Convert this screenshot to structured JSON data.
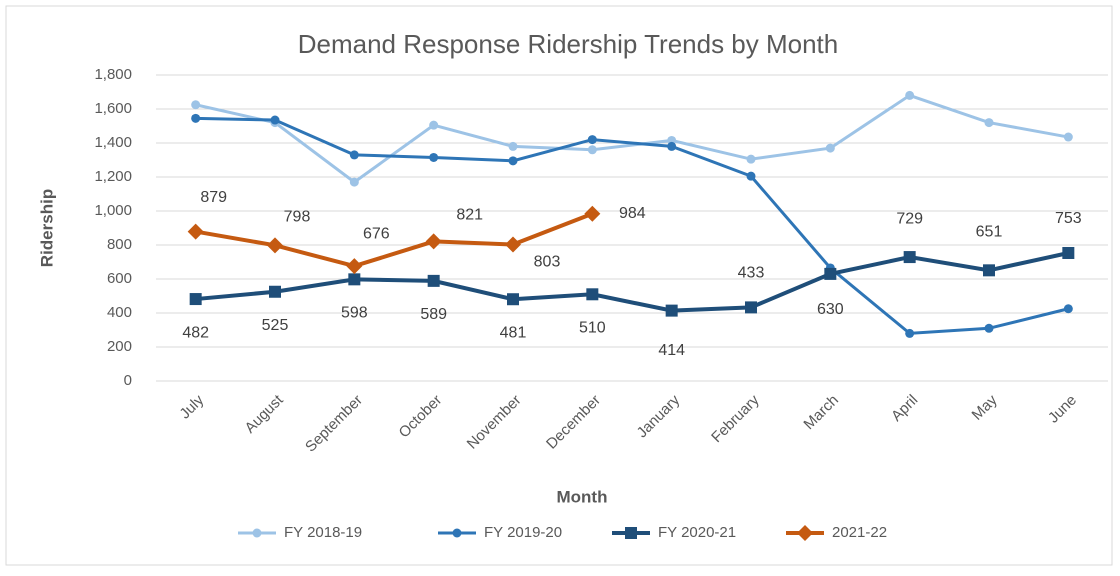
{
  "chart_data": {
    "type": "line",
    "title": "Demand Response Ridership Trends by Month",
    "x_label": "Month",
    "y_label": "Ridership",
    "categories": [
      "July",
      "August",
      "September",
      "October",
      "November",
      "December",
      "January",
      "February",
      "March",
      "April",
      "May",
      "June"
    ],
    "series": [
      {
        "name": "FY 2018-19",
        "color": "#9dc3e6",
        "marker": "circle",
        "data_labels": false,
        "values": [
          1625,
          1520,
          1170,
          1505,
          1380,
          1360,
          1415,
          1305,
          1370,
          1680,
          1520,
          1435
        ]
      },
      {
        "name": "FY 2019-20",
        "color": "#2e75b6",
        "marker": "circle",
        "data_labels": false,
        "values": [
          1545,
          1535,
          1330,
          1315,
          1295,
          1420,
          1380,
          1205,
          665,
          280,
          310,
          425
        ]
      },
      {
        "name": "FY 2020-21",
        "color": "#1f4e79",
        "marker": "square",
        "data_labels": true,
        "values": [
          482,
          525,
          598,
          589,
          481,
          510,
          414,
          433,
          630,
          729,
          651,
          753
        ]
      },
      {
        "name": "2021-22",
        "color": "#c55a11",
        "marker": "diamond",
        "data_labels": true,
        "values": [
          879,
          798,
          676,
          821,
          803,
          984,
          null,
          null,
          null,
          null,
          null,
          null
        ]
      }
    ],
    "ylim": [
      0,
      1800
    ],
    "yticks": [
      0,
      200,
      400,
      600,
      800,
      {
        "value": 1000,
        "label": "1,000"
      },
      {
        "value": 1200,
        "label": "1,200"
      },
      {
        "value": 1400,
        "label": "1,400"
      },
      {
        "value": 1600,
        "label": "1,600"
      },
      {
        "value": 1800,
        "label": "1,800"
      }
    ],
    "grid": true,
    "legend": "bottom"
  }
}
